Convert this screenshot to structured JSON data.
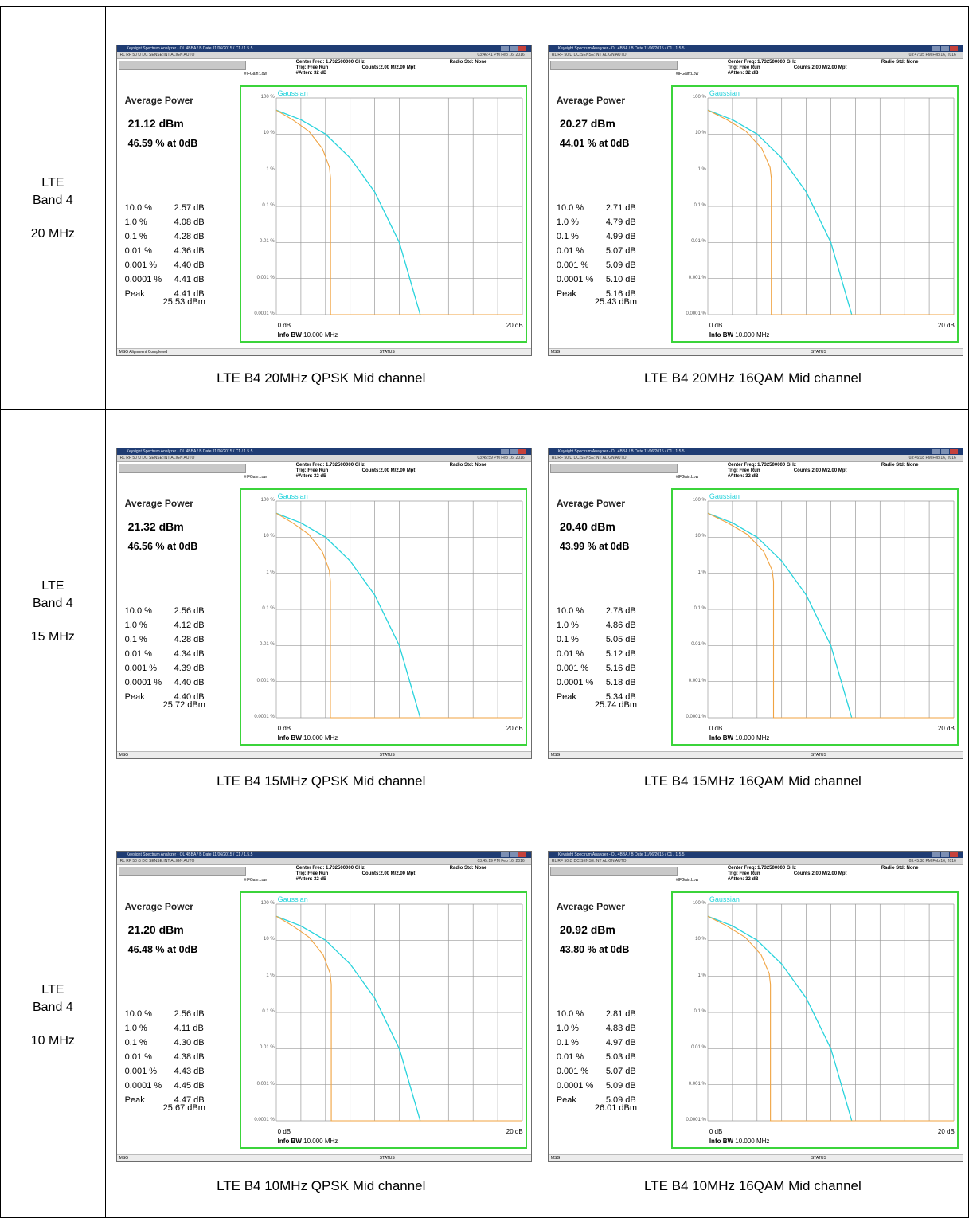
{
  "rows": [
    {
      "band": [
        "LTE",
        "Band 4",
        "20 MHz"
      ],
      "cells": [
        {
          "caption": "LTE B4 20MHz QPSK Mid channel",
          "avg_dbm": "21.12 dBm",
          "avg_pct": "46.59 % at 0dB",
          "stats": [
            [
              "10.0 %",
              "2.57 dB"
            ],
            [
              "1.0 %",
              "4.08 dB"
            ],
            [
              "0.1 %",
              "4.28 dB"
            ],
            [
              "0.01 %",
              "4.36 dB"
            ],
            [
              "0.001 %",
              "4.40 dB"
            ],
            [
              "0.0001 %",
              "4.41 dB"
            ],
            [
              "Peak",
              "4.41 dB"
            ]
          ],
          "peak_dbm": "25.53 dBm",
          "time": "03:46:41 PM Feb 16, 2016",
          "footer_msg": "Alignment Completed",
          "cut_db": 4.41
        },
        {
          "caption": "LTE B4 20MHz 16QAM Mid channel",
          "avg_dbm": "20.27 dBm",
          "avg_pct": "44.01 % at 0dB",
          "stats": [
            [
              "10.0 %",
              "2.71 dB"
            ],
            [
              "1.0 %",
              "4.79 dB"
            ],
            [
              "0.1 %",
              "4.99 dB"
            ],
            [
              "0.01 %",
              "5.07 dB"
            ],
            [
              "0.001 %",
              "5.09 dB"
            ],
            [
              "0.0001 %",
              "5.10 dB"
            ],
            [
              "Peak",
              "5.16 dB"
            ]
          ],
          "peak_dbm": "25.43 dBm",
          "time": "03:47:05 PM Feb 16, 2016",
          "footer_msg": "",
          "cut_db": 5.16
        }
      ]
    },
    {
      "band": [
        "LTE",
        "Band 4",
        "15 MHz"
      ],
      "cells": [
        {
          "caption": "LTE B4 15MHz QPSK Mid channel",
          "avg_dbm": "21.32 dBm",
          "avg_pct": "46.56 % at 0dB",
          "stats": [
            [
              "10.0 %",
              "2.56 dB"
            ],
            [
              "1.0 %",
              "4.12 dB"
            ],
            [
              "0.1 %",
              "4.28 dB"
            ],
            [
              "0.01 %",
              "4.34 dB"
            ],
            [
              "0.001 %",
              "4.39 dB"
            ],
            [
              "0.0001 %",
              "4.40 dB"
            ],
            [
              "Peak",
              "4.40 dB"
            ]
          ],
          "peak_dbm": "25.72 dBm",
          "time": "03:45:59 PM Feb 16, 2016",
          "footer_msg": "",
          "cut_db": 4.4
        },
        {
          "caption": "LTE B4 15MHz 16QAM Mid channel",
          "avg_dbm": "20.40 dBm",
          "avg_pct": "43.99 % at 0dB",
          "stats": [
            [
              "10.0 %",
              "2.78 dB"
            ],
            [
              "1.0 %",
              "4.86 dB"
            ],
            [
              "0.1 %",
              "5.05 dB"
            ],
            [
              "0.01 %",
              "5.12 dB"
            ],
            [
              "0.001 %",
              "5.16 dB"
            ],
            [
              "0.0001 %",
              "5.18 dB"
            ],
            [
              "Peak",
              "5.34 dB"
            ]
          ],
          "peak_dbm": "25.74 dBm",
          "time": "03:46:18 PM Feb 16, 2016",
          "footer_msg": "",
          "cut_db": 5.34
        }
      ]
    },
    {
      "band": [
        "LTE",
        "Band 4",
        "10 MHz"
      ],
      "cells": [
        {
          "caption": "LTE B4 10MHz QPSK Mid channel",
          "avg_dbm": "21.20 dBm",
          "avg_pct": "46.48 % at 0dB",
          "stats": [
            [
              "10.0 %",
              "2.56 dB"
            ],
            [
              "1.0 %",
              "4.11 dB"
            ],
            [
              "0.1 %",
              "4.30 dB"
            ],
            [
              "0.01 %",
              "4.38 dB"
            ],
            [
              "0.001 %",
              "4.43 dB"
            ],
            [
              "0.0001 %",
              "4.45 dB"
            ],
            [
              "Peak",
              "4.47 dB"
            ]
          ],
          "peak_dbm": "25.67 dBm",
          "time": "03:45:19 PM Feb 16, 2016",
          "footer_msg": "",
          "cut_db": 4.47
        },
        {
          "caption": "LTE B4 10MHz 16QAM Mid channel",
          "avg_dbm": "20.92 dBm",
          "avg_pct": "43.80 % at 0dB",
          "stats": [
            [
              "10.0 %",
              "2.81 dB"
            ],
            [
              "1.0 %",
              "4.83 dB"
            ],
            [
              "0.1 %",
              "4.97 dB"
            ],
            [
              "0.01 %",
              "5.03 dB"
            ],
            [
              "0.001 %",
              "5.07 dB"
            ],
            [
              "0.0001 %",
              "5.09 dB"
            ],
            [
              "Peak",
              "5.09 dB"
            ]
          ],
          "peak_dbm": "26.01 dBm",
          "time": "03:45:38 PM Feb 16, 2016",
          "footer_msg": "",
          "cut_db": 5.09
        }
      ]
    }
  ],
  "analyzer": {
    "title": "Keysight Spectrum Analyzer - OL 4BBA / B Date 11/06/2015 / C1 / 1.5.5",
    "top_strip": "RL    RF    50 Ω   DC          SENSE:INT          ALIGN AUTO",
    "center_freq": "Center Freq: 1.732500000 GHz",
    "trig": "Trig: Free Run",
    "atten": "#Atten: 32 dB",
    "counts": "Counts:2.00 M/2.00 Mpt",
    "radio_std": "Radio Std: None",
    "if_gain": "#IFGain:Low",
    "avg_power_label": "Average Power",
    "gaussian_label": "Gaussian",
    "y_labels": [
      "100 %",
      "10 %",
      "1 %",
      "0.1 %",
      "0.01 %",
      "0.001 %",
      "0.0001 %"
    ],
    "x_left": "0 dB",
    "x_right": "20 dB",
    "info_bw_label": "Info BW",
    "info_bw_value": "10.000 MHz",
    "msg_label": "MSG",
    "status_label": "STATUS",
    "colors": {
      "gaussian": "#27d3dc",
      "measured": "#f0a341",
      "frame": "#3bd43b"
    }
  },
  "chart_data": {
    "type": "line",
    "xlabel": "",
    "ylabel": "",
    "xlim": [
      0,
      20
    ],
    "ylim": [
      0.0001,
      100
    ],
    "y_scale": "log",
    "series": [
      {
        "name": "Gaussian",
        "x": [
          0,
          2,
          4,
          6,
          8,
          10,
          11.7
        ],
        "y": [
          46,
          25,
          10,
          2.2,
          0.25,
          0.01,
          0.0001
        ]
      }
    ]
  }
}
